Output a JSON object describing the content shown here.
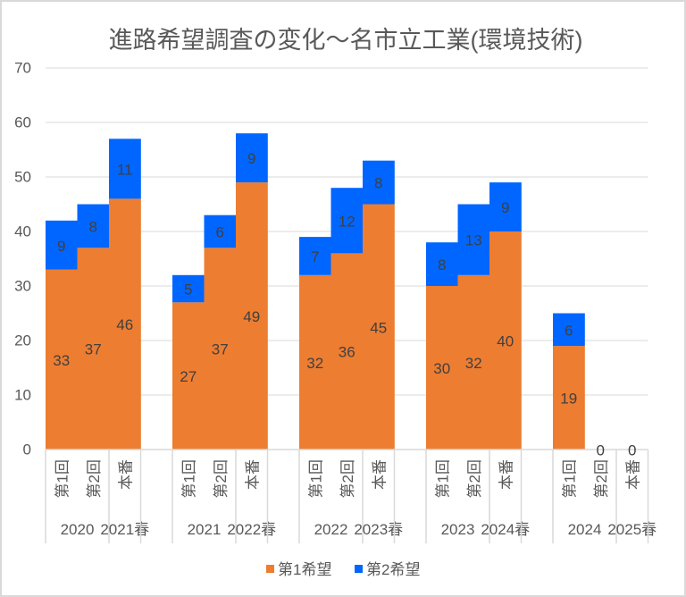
{
  "chart_data": {
    "type": "bar",
    "stacked": true,
    "title": "進路希望調査の変化～名市立工業(環境技術)",
    "xlabel": "",
    "ylabel": "",
    "ylim": [
      0,
      70
    ],
    "yticks": [
      0,
      10,
      20,
      30,
      40,
      50,
      60,
      70
    ],
    "grid": true,
    "legend": "bottom",
    "categories": [
      "第1回",
      "第2回",
      "本番",
      "",
      "第1回",
      "第2回",
      "本番",
      "",
      "第1回",
      "第2回",
      "本番",
      "",
      "第1回",
      "第2回",
      "本番",
      "",
      "第1回",
      "第2回",
      "本番"
    ],
    "category_groups": [
      {
        "label": "2020",
        "span": 2
      },
      {
        "label": "2021春",
        "span": 1
      },
      {
        "label": "",
        "span": 1
      },
      {
        "label": "2021",
        "span": 2
      },
      {
        "label": "2022春",
        "span": 1
      },
      {
        "label": "",
        "span": 1
      },
      {
        "label": "2022",
        "span": 2
      },
      {
        "label": "2023春",
        "span": 1
      },
      {
        "label": "",
        "span": 1
      },
      {
        "label": "2023",
        "span": 2
      },
      {
        "label": "2024春",
        "span": 1
      },
      {
        "label": "",
        "span": 1
      },
      {
        "label": "2024",
        "span": 2
      },
      {
        "label": "2025春",
        "span": 1
      }
    ],
    "series": [
      {
        "name": "第1希望",
        "color": "#ED7D31",
        "values": [
          33,
          37,
          46,
          null,
          27,
          37,
          49,
          null,
          32,
          36,
          45,
          null,
          30,
          32,
          40,
          null,
          19,
          0,
          0
        ]
      },
      {
        "name": "第2希望",
        "color": "#0066FF",
        "values": [
          9,
          8,
          11,
          null,
          5,
          6,
          9,
          null,
          7,
          12,
          8,
          null,
          8,
          13,
          9,
          null,
          6,
          null,
          null
        ]
      }
    ]
  }
}
